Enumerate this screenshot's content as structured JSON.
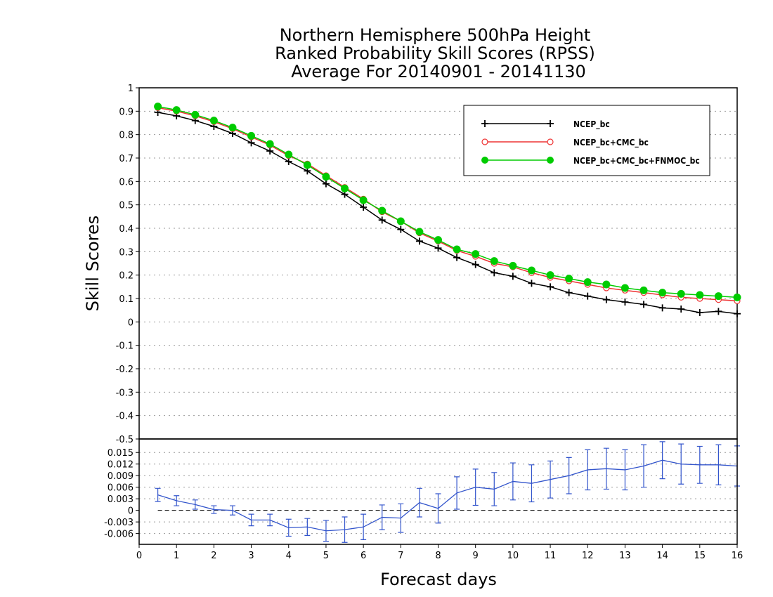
{
  "chart_data": [
    {
      "type": "line",
      "title": [
        "Northern Hemisphere 500hPa Height",
        "Ranked Probability Skill Scores (RPSS)",
        "Average For 20140901 - 20141130"
      ],
      "xlabel": "Forecast days",
      "ylabel": "Skill Scores",
      "xlim": [
        0,
        16
      ],
      "ylim": [
        -0.5,
        1
      ],
      "x_ticks": [
        "0",
        "1",
        "2",
        "3",
        "4",
        "5",
        "6",
        "7",
        "8",
        "9",
        "10",
        "11",
        "12",
        "13",
        "14",
        "15",
        "16"
      ],
      "y_ticks": [
        "1",
        "0.9",
        "0.8",
        "0.7",
        "0.6",
        "0.5",
        "0.4",
        "0.3",
        "0.2",
        "0.1",
        "0",
        "-0.1",
        "-0.2",
        "-0.3",
        "-0.4",
        "-0.5"
      ],
      "grid": true,
      "legend_position": "top-right",
      "x": [
        0.5,
        1,
        1.5,
        2,
        2.5,
        3,
        3.5,
        4,
        4.5,
        5,
        5.5,
        6,
        6.5,
        7,
        7.5,
        8,
        8.5,
        9,
        9.5,
        10,
        10.5,
        11,
        11.5,
        12,
        12.5,
        13,
        13.5,
        14,
        14.5,
        15,
        15.5,
        16
      ],
      "series": [
        {
          "name": "NCEP_bc",
          "color": "#000000",
          "marker": "plus",
          "values": [
            0.895,
            0.88,
            0.86,
            0.835,
            0.805,
            0.765,
            0.73,
            0.685,
            0.645,
            0.59,
            0.545,
            0.49,
            0.435,
            0.395,
            0.345,
            0.315,
            0.275,
            0.245,
            0.21,
            0.195,
            0.165,
            0.15,
            0.125,
            0.11,
            0.095,
            0.085,
            0.075,
            0.06,
            0.055,
            0.04,
            0.045,
            0.035
          ]
        },
        {
          "name": "NCEP_bc+CMC_bc",
          "color": "#ee3333",
          "marker": "open-circle",
          "values": [
            0.915,
            0.9,
            0.88,
            0.855,
            0.825,
            0.79,
            0.755,
            0.71,
            0.675,
            0.625,
            0.575,
            0.525,
            0.47,
            0.43,
            0.38,
            0.345,
            0.305,
            0.28,
            0.25,
            0.235,
            0.21,
            0.19,
            0.175,
            0.16,
            0.145,
            0.135,
            0.125,
            0.115,
            0.105,
            0.1,
            0.095,
            0.09
          ]
        },
        {
          "name": "NCEP_bc+CMC_bc+FNMOC_bc",
          "color": "#00cc00",
          "marker": "filled-circle",
          "values": [
            0.92,
            0.905,
            0.885,
            0.86,
            0.83,
            0.795,
            0.76,
            0.715,
            0.67,
            0.62,
            0.57,
            0.52,
            0.475,
            0.43,
            0.385,
            0.35,
            0.31,
            0.29,
            0.26,
            0.24,
            0.22,
            0.2,
            0.185,
            0.17,
            0.16,
            0.145,
            0.135,
            0.125,
            0.12,
            0.115,
            0.11,
            0.105
          ]
        }
      ]
    },
    {
      "type": "line",
      "title": "",
      "xlabel": "Forecast days",
      "ylabel": "",
      "xlim": [
        0,
        16
      ],
      "ylim": [
        -0.0088,
        0.0185
      ],
      "y_ticks": [
        "0.015",
        "0.012",
        "0.009",
        "0.006",
        "0.003",
        "0",
        "-0.003",
        "-0.006"
      ],
      "x": [
        0.5,
        1,
        1.5,
        2,
        2.5,
        3,
        3.5,
        4,
        4.5,
        5,
        5.5,
        6,
        6.5,
        7,
        7.5,
        8,
        8.5,
        9,
        9.5,
        10,
        10.5,
        11,
        11.5,
        12,
        12.5,
        13,
        13.5,
        14,
        14.5,
        15,
        15.5,
        16
      ],
      "reference_line": 0,
      "series": [
        {
          "name": "",
          "color": "#3355cc",
          "values": [
            0.004,
            0.0025,
            0.0015,
            0.0002,
            0.0,
            -0.0025,
            -0.0025,
            -0.0045,
            -0.0043,
            -0.0053,
            -0.005,
            -0.0043,
            -0.0018,
            -0.002,
            0.002,
            0.0005,
            0.0045,
            0.006,
            0.0055,
            0.0075,
            0.007,
            0.008,
            0.009,
            0.0105,
            0.0108,
            0.0105,
            0.0115,
            0.013,
            0.012,
            0.0118,
            0.0118,
            0.0115
          ],
          "error": [
            0.0017,
            0.0013,
            0.0012,
            0.001,
            0.0012,
            0.0015,
            0.0015,
            0.0022,
            0.0022,
            0.0027,
            0.0033,
            0.0033,
            0.0032,
            0.0037,
            0.0037,
            0.0038,
            0.0042,
            0.0047,
            0.0043,
            0.0048,
            0.0048,
            0.0048,
            0.0047,
            0.0052,
            0.0053,
            0.0052,
            0.0055,
            0.0048,
            0.0052,
            0.0048,
            0.0052,
            0.0052
          ]
        }
      ]
    }
  ]
}
